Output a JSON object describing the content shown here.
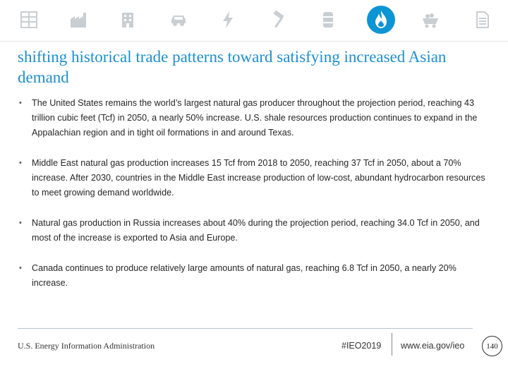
{
  "header": {
    "nav_icons": [
      "data-tables-icon",
      "factory-icon",
      "building-icon",
      "car-icon",
      "lightning-icon",
      "hammer-icon",
      "oil-barrel-icon",
      "gas-flame-icon",
      "coal-cart-icon",
      "document-icon"
    ],
    "active_icon": "gas-flame-icon",
    "accent_color": "#0b95d4",
    "icon_color": "#c9ced3"
  },
  "slide": {
    "title": "shifting historical trade patterns toward satisfying increased Asian demand",
    "bullets": [
      "The United States remains the world’s largest natural gas producer throughout the projection period, reaching 43 trillion cubic feet (Tcf) in 2050, a nearly 50% increase. U.S. shale resources production continues to expand in the Appalachian region and in tight oil formations in and around Texas.",
      "Middle East natural gas production increases 15 Tcf from 2018 to 2050, reaching 37 Tcf in 2050, about a 70% increase. After 2030, countries in the Middle East increase production of low-cost, abundant hydrocarbon resources to meet growing demand worldwide.",
      "Natural gas production in Russia increases about 40% during the projection period, reaching 34.0 Tcf in 2050, and most of the increase is exported to Asia and Europe.",
      "Canada continues to produce relatively large amounts of natural gas, reaching 6.8 Tcf in 2050, a nearly 20% increase."
    ]
  },
  "footer": {
    "agency": "U.S. Energy Information Administration",
    "tag": "#IEO2019",
    "url": "www.eia.gov/ieo",
    "page_number": "140"
  }
}
